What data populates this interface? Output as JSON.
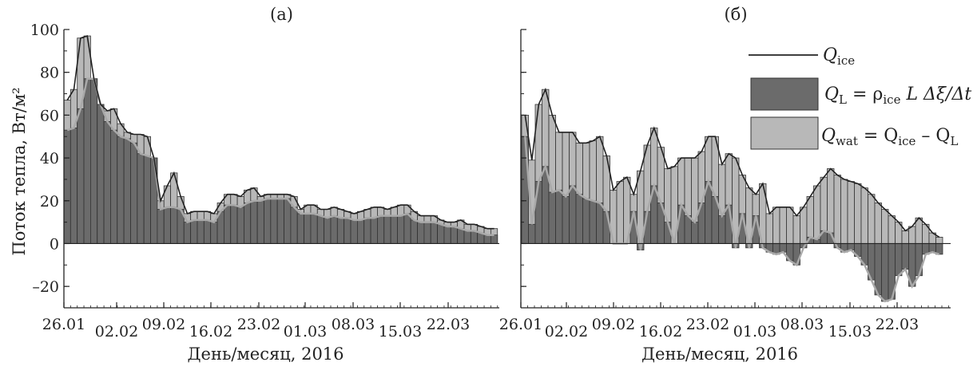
{
  "y_axis_title": "Поток тепла, Вт/м²",
  "legend": {
    "ice": {
      "q": "Q",
      "sub": "ice"
    },
    "latent": {
      "q": "Q",
      "sub": "L",
      "rhs": "= ρ",
      "rhs_sub": "ice",
      "rhs_tail": " L Δξ/Δt"
    },
    "water": {
      "q": "Q",
      "sub": "wat",
      "rhs": "= Q",
      "rhs_sub": "ice",
      "rhs_tail": " – Q",
      "rhs_sub2": "L"
    }
  },
  "colors": {
    "dark": "#6b6b6b",
    "light": "#b8b8b8",
    "line": "#222222",
    "gray_line": "#a9a9a9"
  },
  "chart_data": [
    {
      "type": "bar",
      "title": "(а)",
      "xlabel": "День/месяц, 2016",
      "ylabel": "Поток тепла, Вт/м²",
      "ylim": [
        -30,
        100
      ],
      "yticks": [
        -20,
        0,
        20,
        40,
        60,
        80,
        100
      ],
      "x_start": "26.01",
      "xticks": [
        "26.01",
        "02.02",
        "09.02",
        "16.02",
        "23.02",
        "01.03",
        "08.03",
        "15.03",
        "22.03"
      ],
      "series": [
        {
          "name": "Q_ice",
          "values": [
            67,
            72,
            96,
            97,
            77,
            65,
            62,
            63,
            56,
            52,
            51,
            51,
            50,
            40,
            20,
            27,
            33,
            22,
            14,
            15,
            15,
            15,
            14,
            19,
            23,
            23,
            22,
            25,
            26,
            22,
            23,
            23,
            23,
            23,
            22,
            16,
            18,
            18,
            16,
            16,
            17,
            16,
            15,
            14,
            15,
            16,
            17,
            17,
            16,
            17,
            18,
            18,
            15,
            13,
            13,
            13,
            11,
            10,
            10,
            11,
            9,
            9,
            8,
            7,
            7
          ]
        },
        {
          "name": "Q_L",
          "values": [
            53,
            54,
            63,
            77,
            77,
            65,
            57,
            53,
            50,
            49,
            47,
            42,
            41,
            40,
            16,
            17,
            17,
            16,
            10,
            11,
            11,
            11,
            10,
            15,
            18,
            18,
            17,
            19,
            20,
            20,
            21,
            21,
            21,
            21,
            17,
            14,
            14,
            14,
            13,
            12,
            13,
            12,
            12,
            11,
            11,
            12,
            12,
            13,
            13,
            13,
            13,
            14,
            11,
            10,
            10,
            10,
            9,
            8,
            8,
            7,
            6,
            6,
            5,
            4,
            4
          ]
        }
      ]
    },
    {
      "type": "bar",
      "title": "(б)",
      "xlabel": "День/месяц, 2016",
      "ylim": [
        -30,
        100
      ],
      "yticks": [
        -20,
        0,
        20,
        40,
        60,
        80,
        100
      ],
      "x_start": "26.01",
      "xticks": [
        "26.01",
        "02.02",
        "09.02",
        "16.02",
        "23.02",
        "01.03",
        "08.03",
        "15.03",
        "22.03"
      ],
      "series": [
        {
          "name": "Q_ice",
          "values": [
            60,
            39,
            65,
            72,
            60,
            52,
            52,
            52,
            47,
            47,
            48,
            50,
            41,
            25,
            29,
            31,
            23,
            34,
            46,
            54,
            45,
            35,
            36,
            40,
            40,
            40,
            43,
            50,
            50,
            37,
            42,
            40,
            32,
            26,
            23,
            28,
            14,
            17,
            17,
            17,
            13,
            17,
            22,
            27,
            31,
            35,
            32,
            30,
            29,
            28,
            26,
            23,
            19,
            16,
            13,
            10,
            6,
            8,
            12,
            9,
            5,
            3
          ]
        },
        {
          "name": "Q_L",
          "values": [
            50,
            9,
            29,
            36,
            24,
            25,
            22,
            27,
            23,
            21,
            20,
            19,
            15,
            0,
            0,
            0,
            15,
            -3,
            15,
            27,
            19,
            10,
            0,
            18,
            13,
            10,
            19,
            29,
            22,
            13,
            18,
            -2,
            14,
            -2,
            13,
            -2,
            -4,
            -5,
            -4,
            -8,
            -10,
            -2,
            3,
            2,
            6,
            5,
            -2,
            -4,
            -3,
            -6,
            -10,
            -17,
            -24,
            -27,
            -26,
            -15,
            -12,
            -20,
            -15,
            -5,
            -4,
            -5
          ]
        }
      ]
    }
  ]
}
